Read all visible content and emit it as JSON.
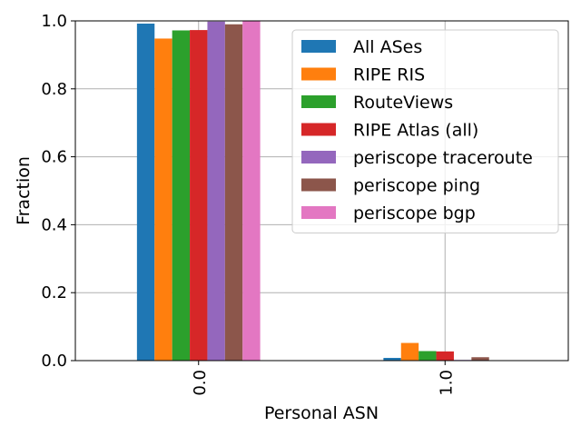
{
  "chart_data": {
    "type": "bar",
    "xlabel": "Personal ASN",
    "ylabel": "Fraction",
    "categories": [
      "0.0",
      "1.0"
    ],
    "ylim": [
      0,
      1.0
    ],
    "yticks": [
      "0.0",
      "0.2",
      "0.4",
      "0.6",
      "0.8",
      "1.0"
    ],
    "grid": true,
    "legend_position": "top-right",
    "series": [
      {
        "name": "All ASes",
        "color": "#1f77b4",
        "values": [
          0.992,
          0.008
        ]
      },
      {
        "name": "RIPE RIS",
        "color": "#ff7f0e",
        "values": [
          0.948,
          0.052
        ]
      },
      {
        "name": "RouteViews",
        "color": "#2ca02c",
        "values": [
          0.972,
          0.028
        ]
      },
      {
        "name": "RIPE Atlas (all)",
        "color": "#d62728",
        "values": [
          0.973,
          0.027
        ]
      },
      {
        "name": "periscope traceroute",
        "color": "#9467bd",
        "values": [
          0.998,
          0.002
        ]
      },
      {
        "name": "periscope ping",
        "color": "#8c564b",
        "values": [
          0.99,
          0.01
        ]
      },
      {
        "name": "periscope bgp",
        "color": "#e377c2",
        "values": [
          1.0,
          0.0
        ]
      }
    ]
  }
}
